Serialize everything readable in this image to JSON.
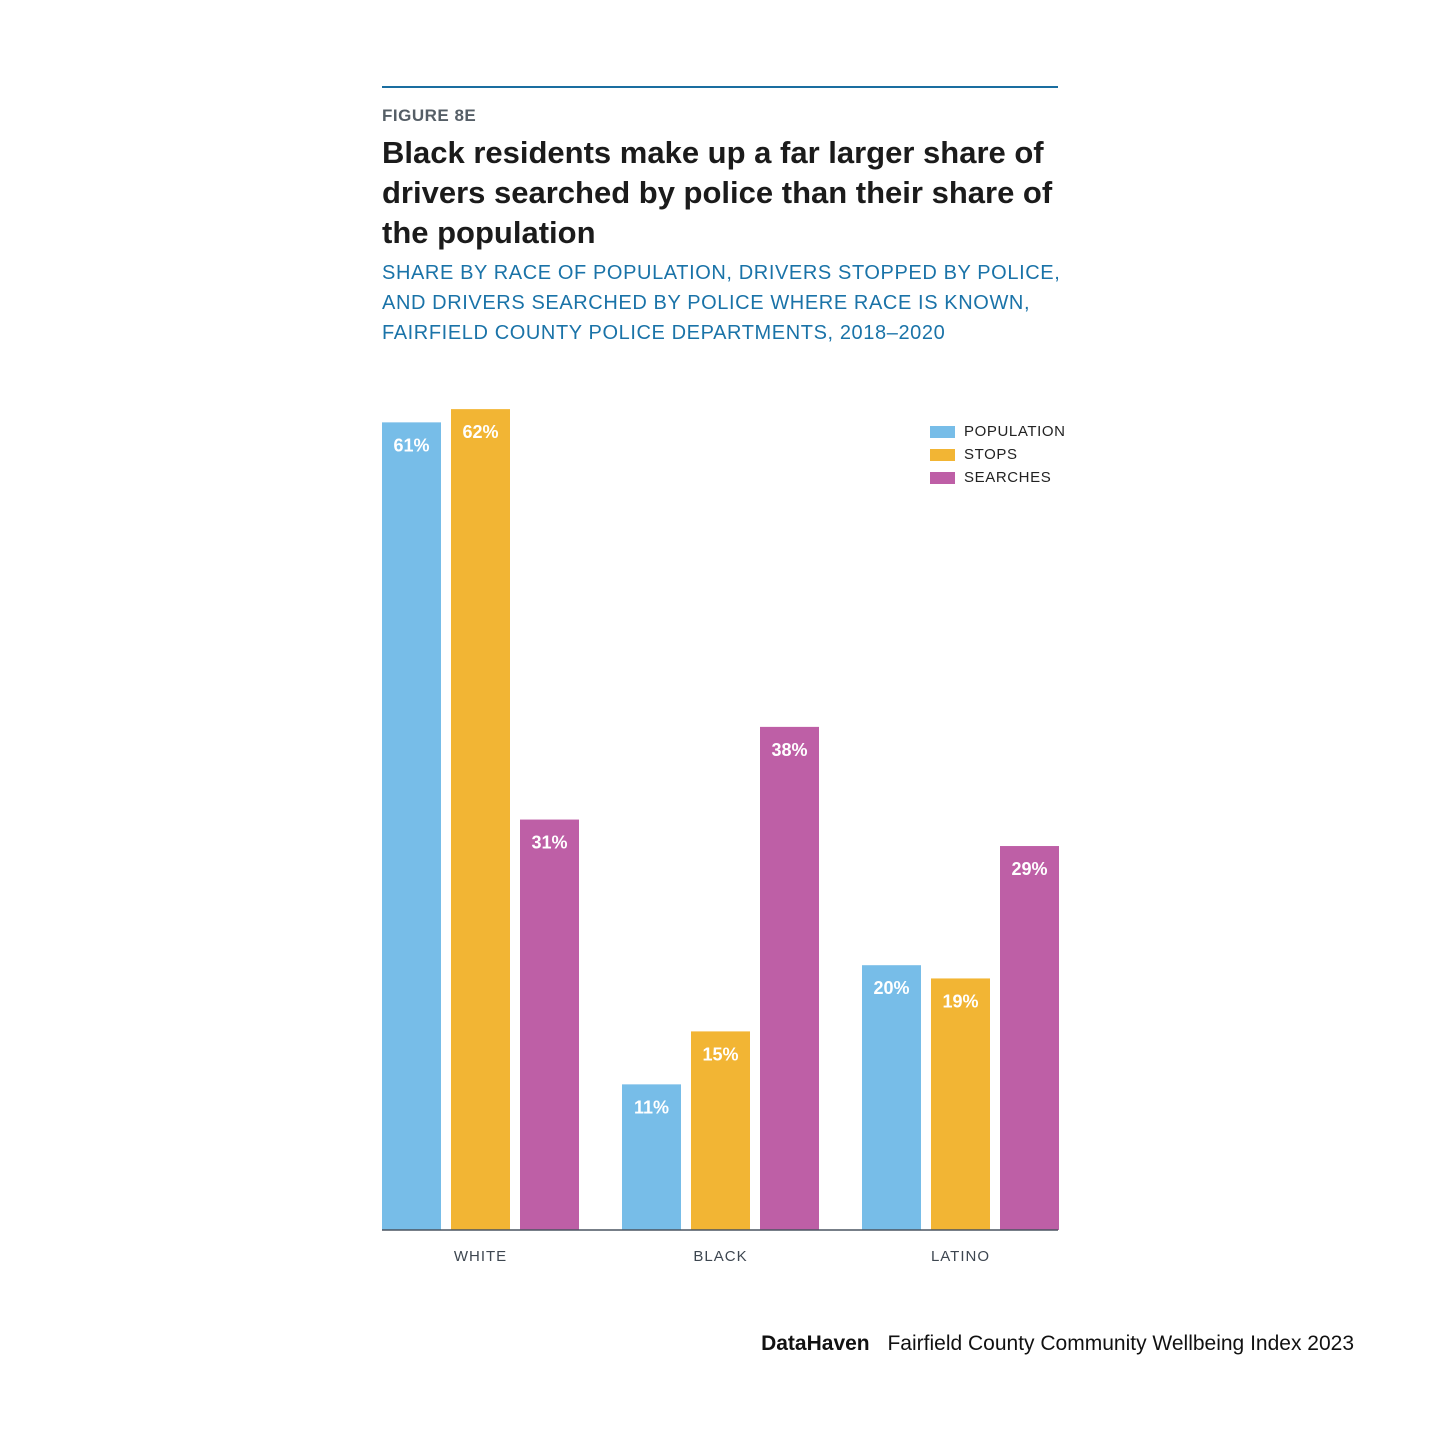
{
  "header": {
    "figure_label": "FIGURE 8E",
    "title": "Black residents make up a far larger share of drivers searched by police than their share of the population",
    "subtitle": "SHARE BY RACE OF POPULATION, DRIVERS STOPPED BY POLICE, AND DRIVERS SEARCHED BY POLICE WHERE RACE IS KNOWN, FAIRFIELD COUNTY POLICE DEPARTMENTS, 2018–2020"
  },
  "chart_data": {
    "type": "bar",
    "title": "Black residents make up a far larger share of drivers searched by police than their share of the population",
    "subtitle": "SHARE BY RACE OF POPULATION, DRIVERS STOPPED BY POLICE, AND DRIVERS SEARCHED BY POLICE WHERE RACE IS KNOWN, FAIRFIELD COUNTY POLICE DEPARTMENTS, 2018–2020",
    "categories": [
      "WHITE",
      "BLACK",
      "LATINO"
    ],
    "series": [
      {
        "name": "POPULATION",
        "color": "#77bde8",
        "values": [
          61,
          11,
          20
        ],
        "labels": [
          "61%",
          "11%",
          "20%"
        ]
      },
      {
        "name": "STOPS",
        "color": "#f2b534",
        "values": [
          62,
          15,
          19
        ],
        "labels": [
          "62%",
          "15%",
          "19%"
        ]
      },
      {
        "name": "SEARCHES",
        "color": "#be5fa6",
        "values": [
          31,
          38,
          29
        ],
        "labels": [
          "31%",
          "38%",
          "29%"
        ]
      }
    ],
    "ylim": [
      0,
      62
    ],
    "xlabel": "",
    "ylabel": "",
    "grid": false,
    "legend_position": "top-right"
  },
  "footer": {
    "brand": "DataHaven",
    "publication": "Fairfield County Community Wellbeing Index 2023"
  }
}
